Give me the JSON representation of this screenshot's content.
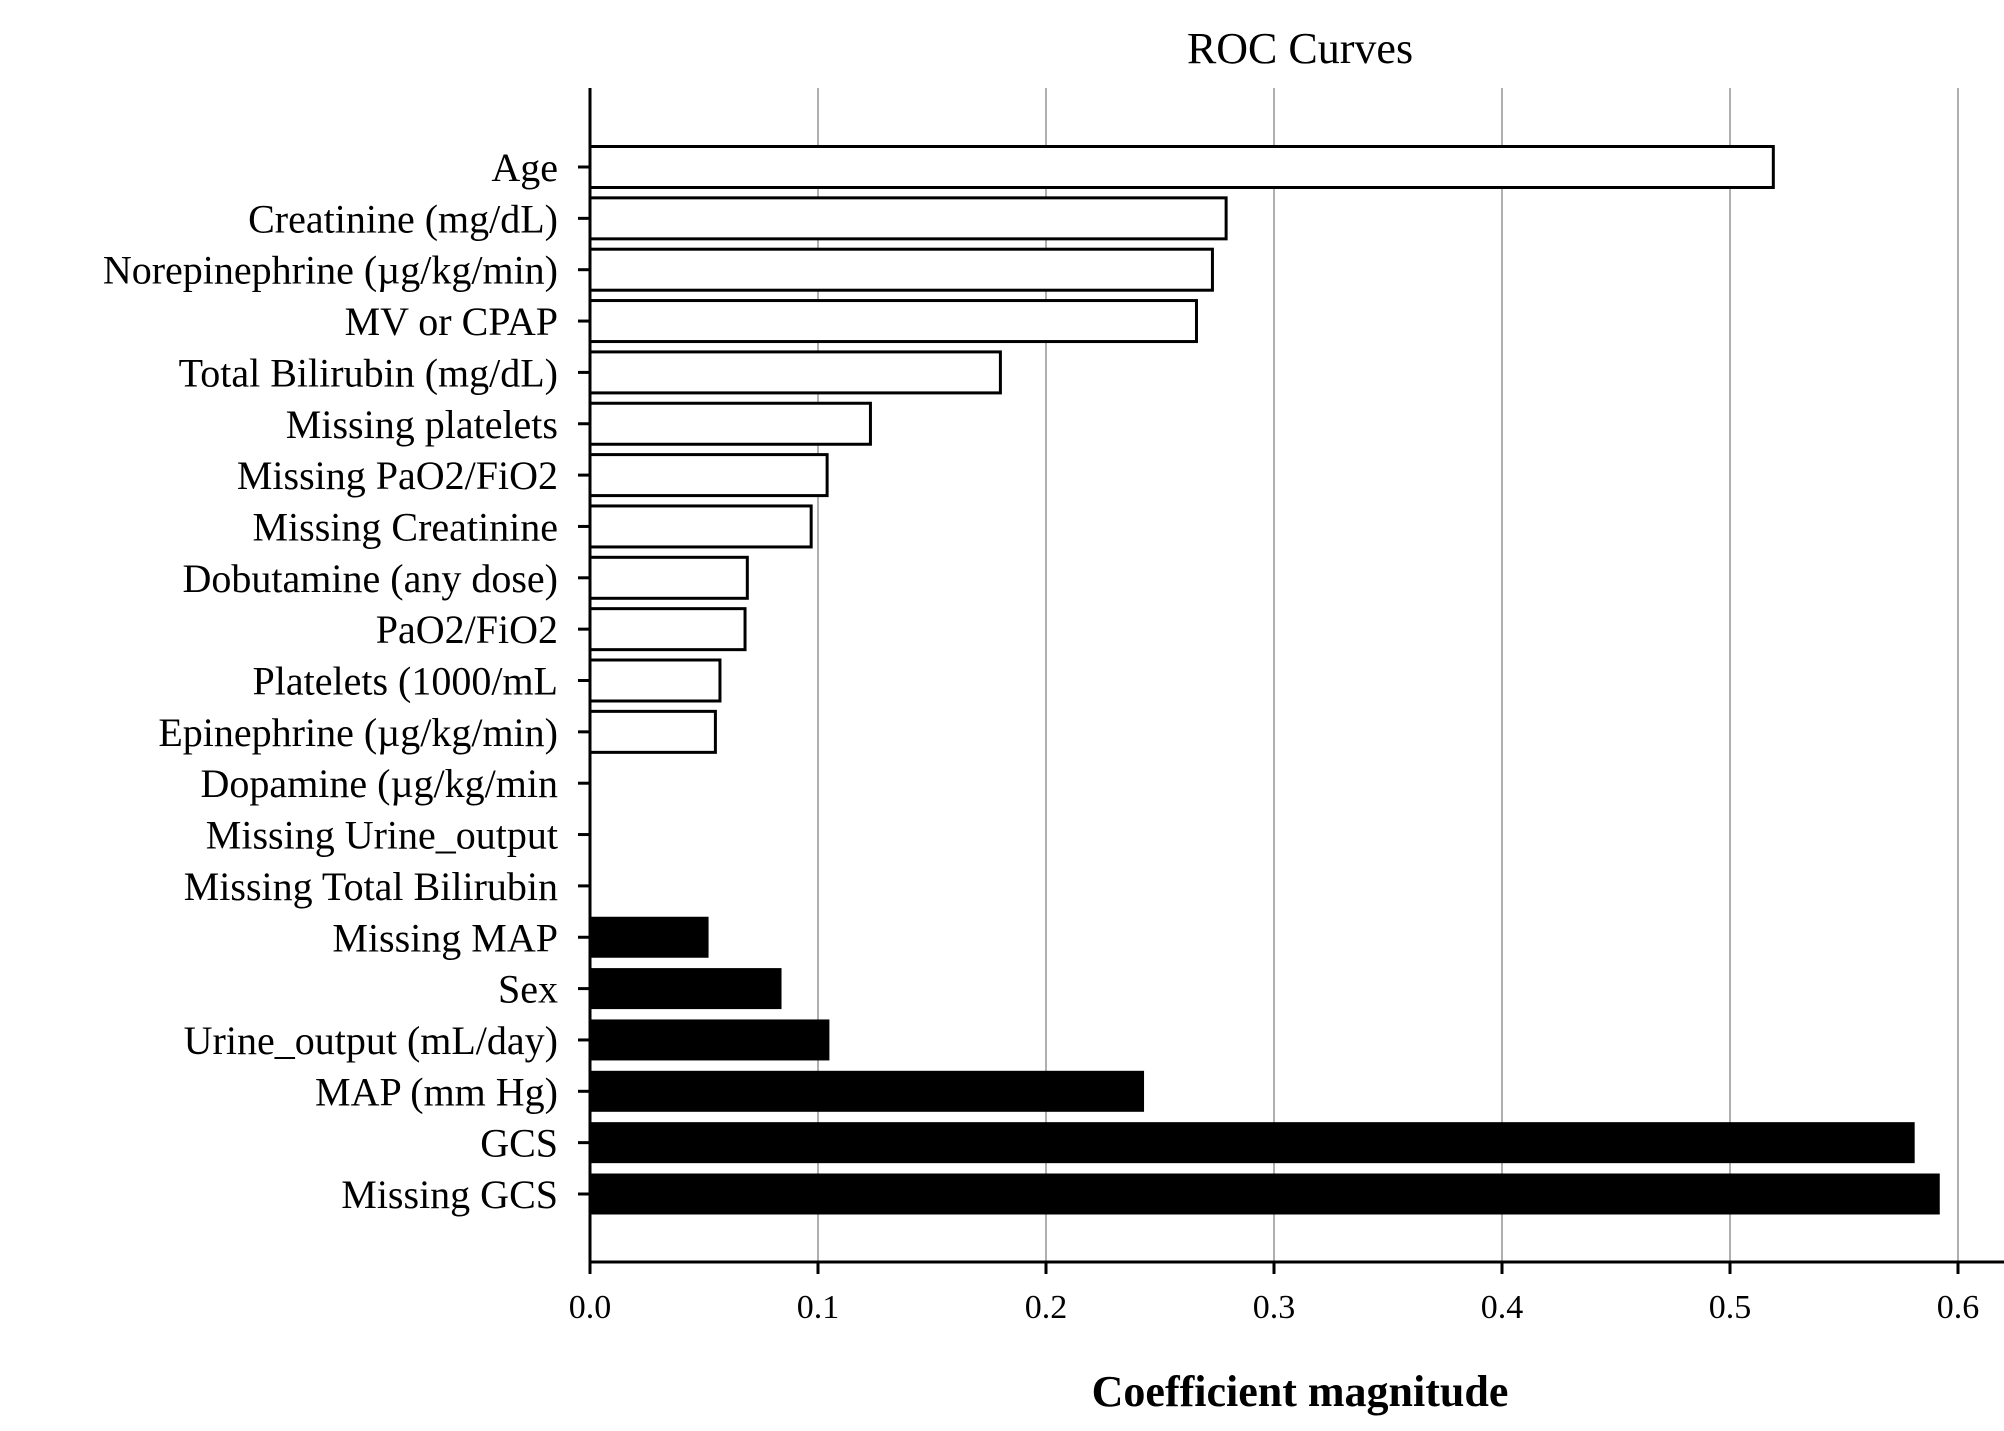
{
  "chart_data": {
    "type": "bar",
    "orientation": "horizontal",
    "title": "ROC Curves",
    "xlabel": "Coefficient magnitude",
    "ylabel": "",
    "xlim": [
      0,
      0.62
    ],
    "xticks": [
      0.0,
      0.1,
      0.2,
      0.3,
      0.4,
      0.5,
      0.6
    ],
    "xtick_labels": [
      "0.0",
      "0.1",
      "0.2",
      "0.3",
      "0.4",
      "0.5",
      "0.6"
    ],
    "grid": "vertical",
    "categories": [
      "Age",
      "Creatinine (mg/dL)",
      "Norepinephrine (µg/kg/min)",
      "MV or CPAP",
      "Total Bilirubin (mg/dL)",
      "Missing platelets",
      "Missing PaO2/FiO2",
      "Missing Creatinine",
      "Dobutamine (any dose)",
      "PaO2/FiO2",
      "Platelets (1000/mL",
      "Epinephrine (µg/kg/min)",
      "Dopamine (µg/kg/min",
      "Missing Urine_output",
      "Missing Total Bilirubin",
      "Missing MAP",
      "Sex",
      "Urine_output (mL/day)",
      "MAP (mm Hg)",
      "GCS",
      "Missing GCS"
    ],
    "values": [
      0.519,
      0.279,
      0.273,
      0.266,
      0.18,
      0.123,
      0.104,
      0.097,
      0.069,
      0.068,
      0.057,
      0.055,
      0.0,
      0.0,
      0.0,
      0.052,
      0.084,
      0.105,
      0.243,
      0.581,
      0.592
    ],
    "bar_style": [
      "outline",
      "outline",
      "outline",
      "outline",
      "outline",
      "outline",
      "outline",
      "outline",
      "outline",
      "outline",
      "outline",
      "outline",
      "none",
      "none",
      "none",
      "filled",
      "filled",
      "filled",
      "filled",
      "filled",
      "filled"
    ],
    "colors": {
      "filled": "#000000",
      "outline_fill": "#ffffff",
      "edge": "#000000",
      "grid": "#b0b0b0"
    }
  }
}
